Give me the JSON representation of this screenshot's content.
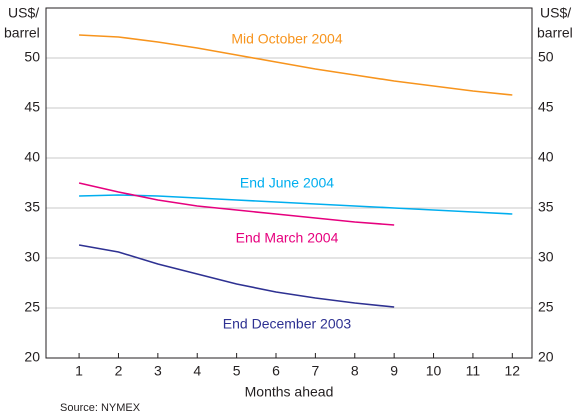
{
  "chart_data": {
    "type": "line",
    "ylabel": [
      "US$/",
      "barrel"
    ],
    "xlabel": "Months ahead",
    "source": "Source: NYMEX",
    "x": [
      1,
      2,
      3,
      4,
      5,
      6,
      7,
      8,
      9,
      10,
      11,
      12
    ],
    "xlim": [
      0.16,
      12.5
    ],
    "xticks": [
      1,
      2,
      3,
      4,
      5,
      6,
      7,
      8,
      9,
      10,
      11,
      12
    ],
    "ylim": [
      20,
      55
    ],
    "yticks": [
      20,
      25,
      30,
      35,
      40,
      45,
      50
    ],
    "grid": true,
    "series": [
      {
        "name": "Mid October 2004",
        "color": "#f7941d",
        "values": [
          52.3,
          52.1,
          51.6,
          51.0,
          50.3,
          49.6,
          48.9,
          48.3,
          47.7,
          47.2,
          46.7,
          46.3
        ]
      },
      {
        "name": "End June 2004",
        "color": "#00aeef",
        "values": [
          36.2,
          36.3,
          36.2,
          36.0,
          35.8,
          35.6,
          35.4,
          35.2,
          35.0,
          34.8,
          34.6,
          34.4
        ]
      },
      {
        "name": "End March 2004",
        "color": "#e6007e",
        "values": [
          37.5,
          36.6,
          35.8,
          35.2,
          34.8,
          34.4,
          34.0,
          33.6,
          33.3,
          null,
          null,
          null
        ]
      },
      {
        "name": "End December 2003",
        "color": "#2e3192",
        "values": [
          31.3,
          30.6,
          29.4,
          28.4,
          27.4,
          26.6,
          26.0,
          25.5,
          25.1,
          null,
          null,
          null
        ]
      }
    ]
  }
}
